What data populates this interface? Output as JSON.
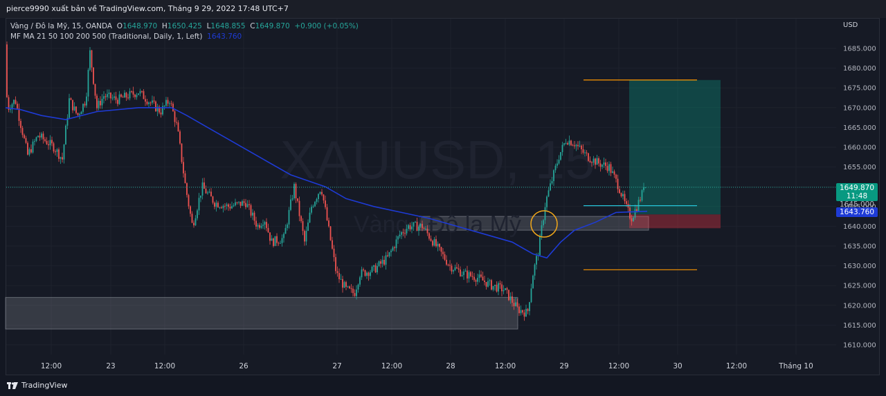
{
  "header": {
    "publish_line": "pierce9990 xuất bản về TradingView.com, Tháng 9 29, 2022 17:48 UTC+7"
  },
  "legend": {
    "symbol": "Vàng / Đô la Mỹ, 15, OANDA",
    "o_label": "O",
    "o_value": "1648.970",
    "h_label": "H",
    "h_value": "1650.425",
    "l_label": "L",
    "l_value": "1648.855",
    "c_label": "C",
    "c_value": "1649.870",
    "change": "+0.900 (+0.05%)",
    "ma_label": "MF MA 21 50 100 200 500 (Traditional, Daily, 1, Left)",
    "ma_value": "1643.760"
  },
  "watermark": {
    "symbol": "XAUUSD, 15",
    "name": "Vàng / Đô la Mỹ"
  },
  "price_axis": {
    "currency": "USD"
  },
  "price_tags": {
    "last_price": "1649.870",
    "countdown": "11:48",
    "ma_price": "1643.760",
    "hidden_label": "1645.000"
  },
  "footer": {
    "brand": "TradingView"
  },
  "colors": {
    "up": "#26a69a",
    "down": "#ef5350",
    "ma": "#1e3bd6",
    "background": "#161a25",
    "target": "#ff9800"
  },
  "chart_data": {
    "type": "candlestick",
    "symbol": "XAUUSD",
    "interval": "15",
    "ylim": [
      1606,
      1690
    ],
    "y_ticks": [
      1610,
      1615,
      1620,
      1625,
      1630,
      1635,
      1640,
      1645,
      1650,
      1655,
      1660,
      1665,
      1670,
      1675,
      1680,
      1685
    ],
    "x_tick_labels": [
      "12:00",
      "23",
      "12:00",
      "26",
      "27",
      "12:00",
      "28",
      "12:00",
      "29",
      "12:00",
      "30",
      "12:00",
      "Tháng 10"
    ],
    "price_path": [
      [
        0,
        1686
      ],
      [
        12,
        1670
      ],
      [
        22,
        1672
      ],
      [
        40,
        1658
      ],
      [
        55,
        1663
      ],
      [
        78,
        1660
      ],
      [
        90,
        1657
      ],
      [
        100,
        1672
      ],
      [
        112,
        1668
      ],
      [
        124,
        1672
      ],
      [
        130,
        1684
      ],
      [
        140,
        1670
      ],
      [
        150,
        1673
      ],
      [
        170,
        1672
      ],
      [
        200,
        1674
      ],
      [
        232,
        1669
      ],
      [
        245,
        1672
      ],
      [
        256,
        1665
      ],
      [
        268,
        1650
      ],
      [
        278,
        1640
      ],
      [
        292,
        1650
      ],
      [
        310,
        1646
      ],
      [
        330,
        1645
      ],
      [
        355,
        1646
      ],
      [
        372,
        1640
      ],
      [
        382,
        1642
      ],
      [
        392,
        1636
      ],
      [
        410,
        1637
      ],
      [
        425,
        1650
      ],
      [
        440,
        1636
      ],
      [
        450,
        1645
      ],
      [
        464,
        1650
      ],
      [
        474,
        1640
      ],
      [
        486,
        1628
      ],
      [
        500,
        1624
      ],
      [
        512,
        1623
      ],
      [
        520,
        1628
      ],
      [
        540,
        1629
      ],
      [
        560,
        1632
      ],
      [
        578,
        1638
      ],
      [
        590,
        1640
      ],
      [
        610,
        1640
      ],
      [
        630,
        1635
      ],
      [
        650,
        1630
      ],
      [
        670,
        1628
      ],
      [
        690,
        1627
      ],
      [
        710,
        1625
      ],
      [
        728,
        1624
      ],
      [
        748,
        1619
      ],
      [
        762,
        1618
      ],
      [
        770,
        1628
      ],
      [
        778,
        1634
      ],
      [
        788,
        1646
      ],
      [
        798,
        1652
      ],
      [
        808,
        1658
      ],
      [
        818,
        1662
      ],
      [
        830,
        1661
      ],
      [
        846,
        1658
      ],
      [
        864,
        1656
      ],
      [
        880,
        1655
      ],
      [
        894,
        1650
      ],
      [
        904,
        1645
      ],
      [
        912,
        1642
      ],
      [
        920,
        1645
      ],
      [
        932,
        1650
      ]
    ],
    "ma_path": [
      [
        8,
        1670
      ],
      [
        30,
        1669.5
      ],
      [
        60,
        1668
      ],
      [
        95,
        1667
      ],
      [
        140,
        1669
      ],
      [
        200,
        1670
      ],
      [
        248,
        1670
      ],
      [
        270,
        1668
      ],
      [
        300,
        1665
      ],
      [
        340,
        1661
      ],
      [
        380,
        1657
      ],
      [
        420,
        1653
      ],
      [
        470,
        1650
      ],
      [
        500,
        1647
      ],
      [
        540,
        1645
      ],
      [
        580,
        1643.5
      ],
      [
        620,
        1642
      ],
      [
        660,
        1640
      ],
      [
        700,
        1638
      ],
      [
        740,
        1636
      ],
      [
        770,
        1633
      ],
      [
        790,
        1632
      ],
      [
        810,
        1636
      ],
      [
        830,
        1639
      ],
      [
        860,
        1641
      ],
      [
        890,
        1643.5
      ],
      [
        935,
        1643.8
      ]
    ],
    "zones": [
      {
        "name": "demand-zone-lower",
        "x0": 8,
        "x1": 748,
        "top": 1622,
        "bottom": 1614
      },
      {
        "name": "demand-zone-upper",
        "x0": 606,
        "x1": 937,
        "top": 1642.5,
        "bottom": 1639
      }
    ],
    "long_position": {
      "x0": 909,
      "x1": 1041,
      "entry": 1643,
      "target": 1677,
      "stop": 1639.5
    },
    "levels": [
      {
        "name": "take-profit-level",
        "price": 1677,
        "x0": 843,
        "x1": 1007
      },
      {
        "name": "entry-level",
        "price": 1645.2,
        "x0": 843,
        "x1": 1007
      },
      {
        "name": "stop-level",
        "price": 1629,
        "x0": 843,
        "x1": 1007
      }
    ],
    "last_price": 1649.87,
    "ma_value": 1643.76
  }
}
